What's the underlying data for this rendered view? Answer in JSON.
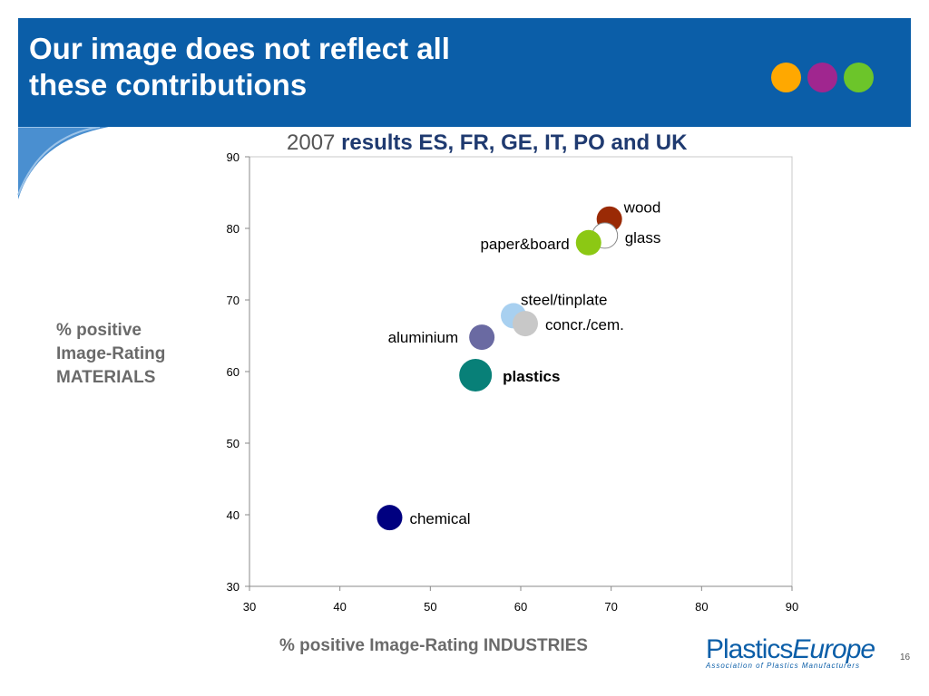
{
  "slide": {
    "title_line1": "Our image does not reflect all",
    "title_line2": "these contributions",
    "subtitle_year": "2007",
    "subtitle_rest": "results ES, FR, GE, IT, PO and UK",
    "ylabel_line1": "% positive",
    "ylabel_line2": "Image-Rating",
    "ylabel_line3": "MATERIALS",
    "xlabel": "% positive Image-Rating INDUSTRIES",
    "logo_part1": "Plastics",
    "logo_part2": "Europe",
    "logo_tagline": "Association of Plastics Manufacturers",
    "page_number": "16",
    "header_color": "#0b5ea8",
    "dot_colors": [
      "#ffa800",
      "#a0268f",
      "#6cc52a"
    ]
  },
  "chart_data": {
    "type": "scatter",
    "xlim": [
      30,
      90
    ],
    "ylim": [
      30,
      90
    ],
    "x_ticks": [
      30,
      40,
      50,
      60,
      70,
      80,
      90
    ],
    "y_ticks": [
      30,
      40,
      50,
      60,
      70,
      80,
      90
    ],
    "grid": false,
    "points": [
      {
        "label": "wood",
        "x": 69.8,
        "y": 81.3,
        "color": "#9a2a05",
        "bold": false
      },
      {
        "label": "glass",
        "x": 69.3,
        "y": 79.0,
        "color": "#ffffff",
        "bold": false
      },
      {
        "label": "paper&board",
        "x": 67.5,
        "y": 78.0,
        "color": "#8cc814",
        "bold": false
      },
      {
        "label": "steel/tinplate",
        "x": 59.2,
        "y": 67.8,
        "color": "#a8d0f0",
        "bold": false
      },
      {
        "label": "concr./cem.",
        "x": 60.5,
        "y": 66.7,
        "color": "#c8c8c8",
        "bold": false
      },
      {
        "label": "aluminium",
        "x": 55.7,
        "y": 64.8,
        "color": "#6a6aa2",
        "bold": false
      },
      {
        "label": "plastics",
        "x": 55.0,
        "y": 59.5,
        "color": "#088078",
        "bold": true
      },
      {
        "label": "chemical",
        "x": 45.5,
        "y": 39.6,
        "color": "#000080",
        "bold": false
      }
    ]
  }
}
